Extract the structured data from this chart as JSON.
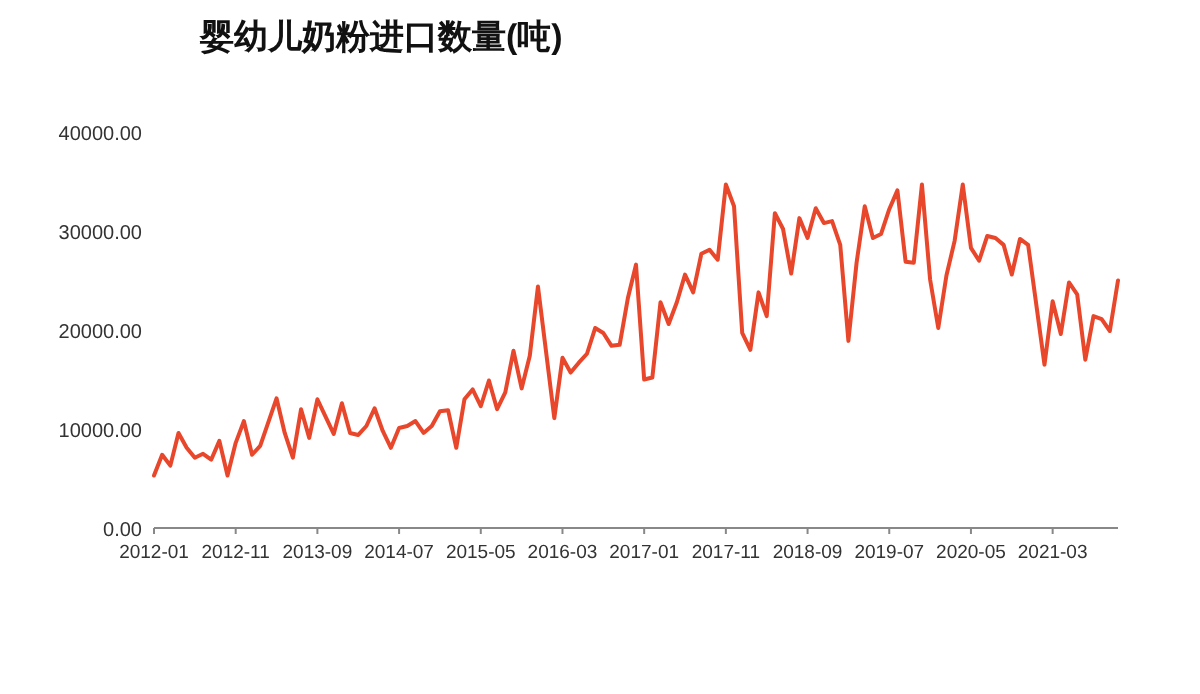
{
  "chart_data": {
    "type": "line",
    "title": "婴幼儿奶粉进口数量(吨)",
    "xlim": [
      "2012-01",
      "2021-11"
    ],
    "xticks": [
      "2012-01",
      "2012-11",
      "2013-09",
      "2014-07",
      "2015-05",
      "2016-03",
      "2017-01",
      "2017-11",
      "2018-09",
      "2019-07",
      "2020-05",
      "2021-03"
    ],
    "ylim": [
      0,
      40000
    ],
    "yticks": [
      {
        "value": 0,
        "label": "0.00"
      },
      {
        "value": 10000,
        "label": "10000.00"
      },
      {
        "value": 20000,
        "label": "20000.00"
      },
      {
        "value": 30000,
        "label": "30000.00"
      },
      {
        "value": 40000,
        "label": "40000.00"
      }
    ],
    "marker": "none",
    "line_style": "solid",
    "series": [
      {
        "color": "#e8472b",
        "x": [
          "2012-01",
          "2012-02",
          "2012-03",
          "2012-04",
          "2012-05",
          "2012-06",
          "2012-07",
          "2012-08",
          "2012-09",
          "2012-10",
          "2012-11",
          "2012-12",
          "2013-01",
          "2013-02",
          "2013-04",
          "2013-05",
          "2013-06",
          "2013-07",
          "2013-08",
          "2013-09",
          "2013-11",
          "2013-12",
          "2014-01",
          "2014-02",
          "2014-03",
          "2014-04",
          "2014-05",
          "2014-06",
          "2014-07",
          "2014-08",
          "2014-09",
          "2014-10",
          "2014-11",
          "2014-12",
          "2015-01",
          "2015-02",
          "2015-03",
          "2015-04",
          "2015-05",
          "2015-06",
          "2015-07",
          "2015-08",
          "2015-09",
          "2015-10",
          "2015-11",
          "2015-12",
          "2016-02",
          "2016-03",
          "2016-04",
          "2016-05",
          "2016-06",
          "2016-07",
          "2016-08",
          "2016-09",
          "2016-10",
          "2016-11",
          "2016-12",
          "2017-01",
          "2017-02",
          "2017-03",
          "2017-04",
          "2017-05",
          "2017-06",
          "2017-07",
          "2017-08",
          "2017-09",
          "2017-10",
          "2017-11",
          "2017-12",
          "2018-01",
          "2018-02",
          "2018-03",
          "2018-04",
          "2018-05",
          "2018-06",
          "2018-07",
          "2018-08",
          "2018-09",
          "2018-10",
          "2018-11",
          "2018-12",
          "2019-01",
          "2019-02",
          "2019-03",
          "2019-04",
          "2019-05",
          "2019-06",
          "2019-07",
          "2019-08",
          "2019-09",
          "2019-10",
          "2019-11",
          "2019-12",
          "2020-01",
          "2020-02",
          "2020-03",
          "2020-04",
          "2020-05",
          "2020-06",
          "2020-07",
          "2020-08",
          "2020-09",
          "2020-10",
          "2020-11",
          "2020-12",
          "2021-02",
          "2021-03",
          "2021-04",
          "2021-05",
          "2021-06",
          "2021-07",
          "2021-08",
          "2021-09",
          "2021-10",
          "2021-11"
        ],
        "values": [
          5300,
          7400,
          6300,
          9600,
          8100,
          7100,
          7500,
          6900,
          8800,
          5300,
          8600,
          10800,
          7400,
          8300,
          13100,
          9600,
          7100,
          12000,
          9100,
          13000,
          9500,
          12600,
          9600,
          9400,
          10300,
          12100,
          9800,
          8100,
          10100,
          10300,
          10800,
          9600,
          10300,
          11800,
          11900,
          8100,
          13000,
          14000,
          12300,
          14900,
          12000,
          13700,
          17900,
          14100,
          17400,
          24400,
          11100,
          17200,
          15700,
          16700,
          17600,
          20200,
          19700,
          18400,
          18500,
          23200,
          26600,
          15000,
          15200,
          22800,
          20600,
          22800,
          25600,
          23800,
          27700,
          28100,
          27100,
          34700,
          32500,
          19700,
          18000,
          23800,
          21400,
          31800,
          30200,
          25700,
          31300,
          29300,
          32300,
          30800,
          31000,
          28600,
          18900,
          26800,
          32500,
          29300,
          29700,
          32200,
          34100,
          26900,
          26800,
          34700,
          25100,
          20200,
          25500,
          29000,
          34700,
          28300,
          27000,
          29500,
          29300,
          28600,
          25600,
          29200,
          28600,
          16500,
          22900,
          19600,
          24800,
          23600,
          17000,
          21400,
          21100,
          19900,
          25000
        ]
      }
    ]
  }
}
